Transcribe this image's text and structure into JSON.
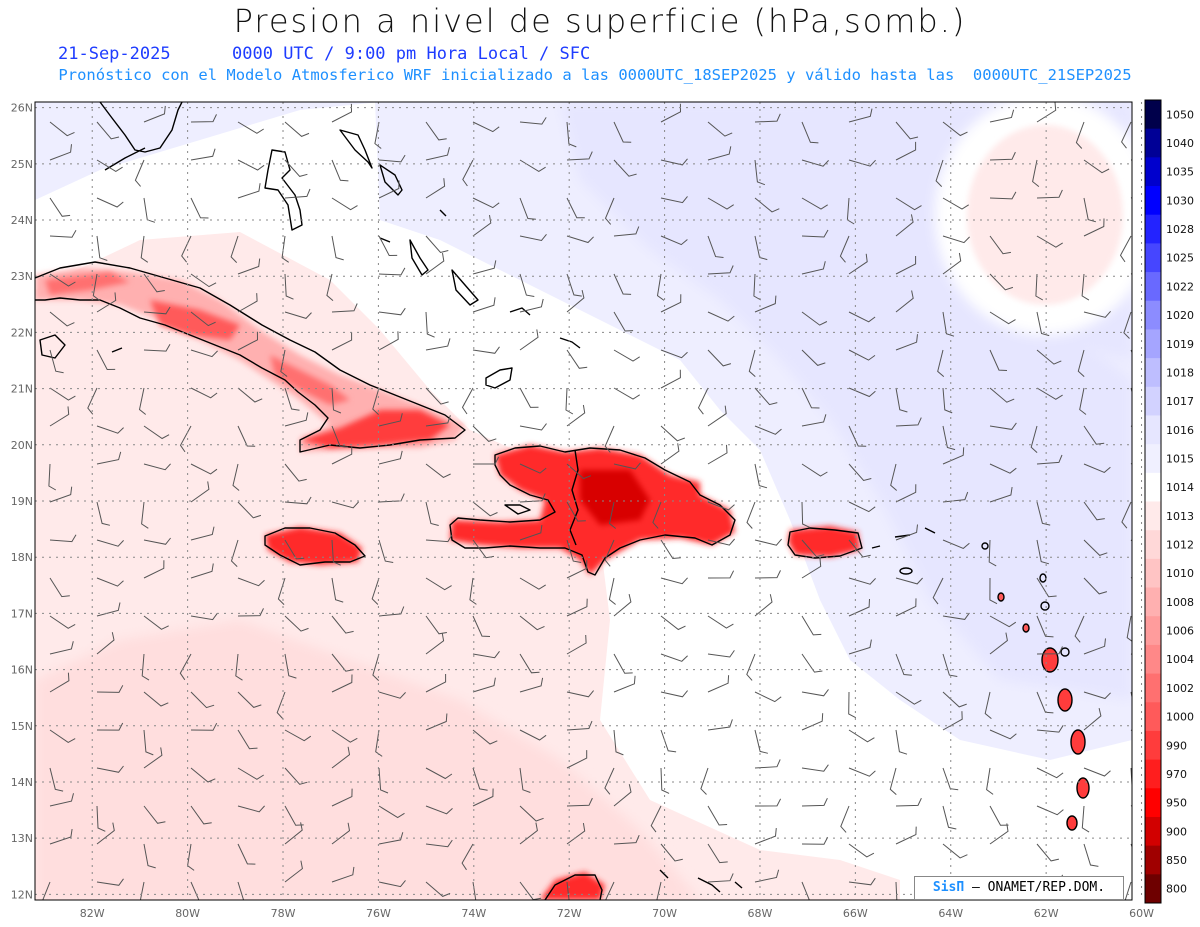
{
  "title": "Presion a nivel de superficie (hPa,somb.)",
  "date": "21-Sep-2025",
  "valid_info": "0000 UTC / 9:00 pm Hora Local / SFC",
  "forecast_info": "Pronóstico con el Modelo Atmosferico WRF inicializado a las 0000UTC_18SEP2025 y válido hasta las  0000UTC_21SEP2025",
  "credit": {
    "logo": "SisΠ",
    "text": "– ONAMET/REP.DOM."
  },
  "map": {
    "lon_range": [
      -83.2,
      -60.2
    ],
    "lat_range": [
      11.9,
      26.1
    ],
    "lon_ticks": [
      "82W",
      "80W",
      "78W",
      "76W",
      "74W",
      "72W",
      "70W",
      "68W",
      "66W",
      "64W",
      "62W",
      "60W"
    ],
    "lat_ticks": [
      "26N",
      "25N",
      "24N",
      "23N",
      "22N",
      "21N",
      "20N",
      "19N",
      "18N",
      "17N",
      "16N",
      "15N",
      "14N",
      "13N",
      "12N"
    ]
  },
  "colorbar": {
    "labels": [
      "1050",
      "1040",
      "1035",
      "1030",
      "1028",
      "1025",
      "1022",
      "1020",
      "1019",
      "1018",
      "1017",
      "1016",
      "1015",
      "1014",
      "1013",
      "1012",
      "1010",
      "1008",
      "1006",
      "1004",
      "1002",
      "1000",
      "990",
      "970",
      "950",
      "900",
      "850",
      "800"
    ],
    "colors": [
      "#00004b",
      "#000096",
      "#0000cd",
      "#0000ff",
      "#2323ff",
      "#4646ff",
      "#6969ff",
      "#8c8cff",
      "#a5a5ff",
      "#bebeff",
      "#d2d2ff",
      "#e6e6ff",
      "#f0f0ff",
      "#ffffff",
      "#ffeaea",
      "#ffd8d8",
      "#ffc4c4",
      "#ffb0b0",
      "#ff9c9c",
      "#ff8888",
      "#ff7070",
      "#ff5a5a",
      "#ff3c3c",
      "#ff1e1e",
      "#ff0000",
      "#d20000",
      "#a00000",
      "#6e0000"
    ]
  }
}
